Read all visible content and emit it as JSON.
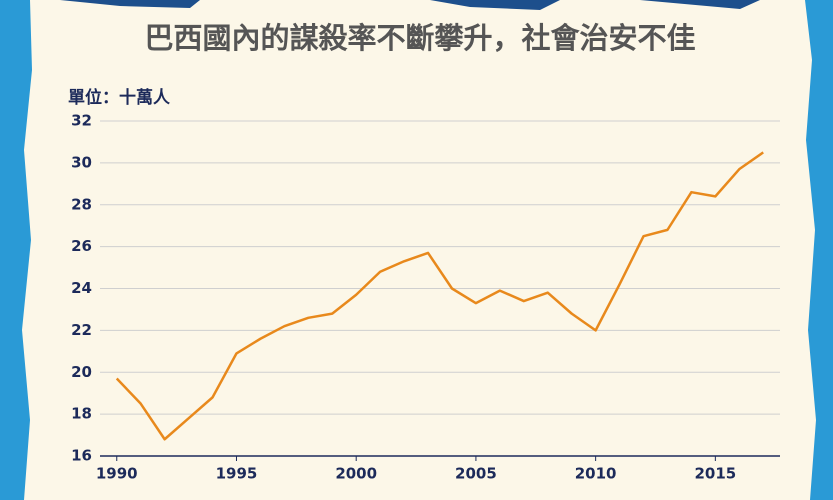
{
  "chart_data": {
    "type": "line",
    "title": "巴西國內的謀殺率不斷攀升，社會治安不佳",
    "y_label": "單位：十萬人",
    "x": [
      1990,
      1991,
      1992,
      1993,
      1994,
      1995,
      1996,
      1997,
      1998,
      1999,
      2000,
      2001,
      2002,
      2003,
      2004,
      2005,
      2006,
      2007,
      2008,
      2009,
      2010,
      2011,
      2012,
      2013,
      2014,
      2015,
      2016,
      2017
    ],
    "series": [
      {
        "color": "#e8891c",
        "values": [
          19.7,
          18.5,
          16.8,
          17.8,
          18.8,
          20.9,
          21.6,
          22.2,
          22.6,
          22.8,
          23.7,
          24.8,
          25.3,
          25.7,
          24.0,
          23.3,
          23.9,
          23.4,
          23.8,
          22.8,
          22.0,
          24.2,
          26.5,
          26.8,
          28.6,
          28.4,
          29.7,
          30.5
        ]
      }
    ],
    "xlim": [
      1989.3,
      2017.7
    ],
    "xticks": [
      1990,
      1995,
      2000,
      2005,
      2010,
      2015
    ],
    "ylim": [
      16,
      32
    ],
    "yticks": [
      16,
      18,
      20,
      22,
      24,
      26,
      28,
      30,
      32
    ],
    "grid": true
  }
}
